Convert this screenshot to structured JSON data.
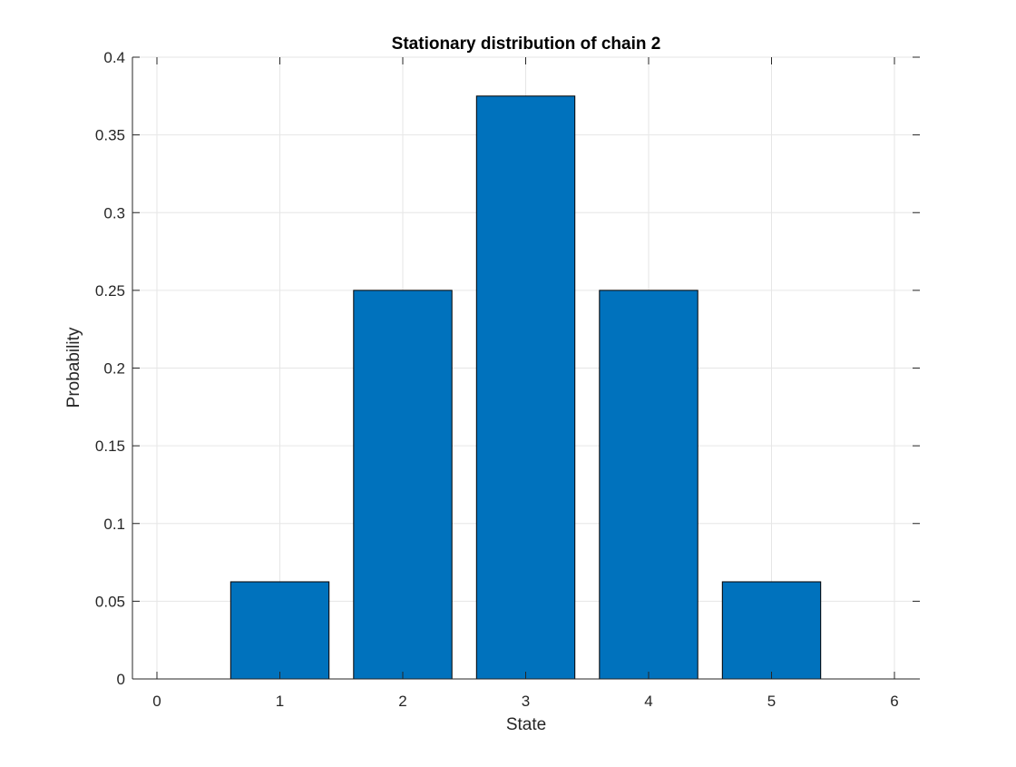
{
  "chart_data": {
    "type": "bar",
    "title": "Stationary distribution of chain 2",
    "xlabel": "State",
    "ylabel": "Probability",
    "categories": [
      1,
      2,
      3,
      4,
      5
    ],
    "values": [
      0.0625,
      0.25,
      0.375,
      0.25,
      0.0625
    ],
    "xlim": [
      0,
      6
    ],
    "ylim": [
      0,
      0.4
    ],
    "xticks": [
      "0",
      "1",
      "2",
      "3",
      "4",
      "5",
      "6"
    ],
    "yticks": [
      "0",
      "0.05",
      "0.1",
      "0.15",
      "0.2",
      "0.25",
      "0.3",
      "0.35",
      "0.4"
    ],
    "grid": true,
    "bar_color": "#0072BD",
    "bar_edge_color": "#000000",
    "grid_color": "#E6E6E6",
    "axis_color": "#262626"
  }
}
